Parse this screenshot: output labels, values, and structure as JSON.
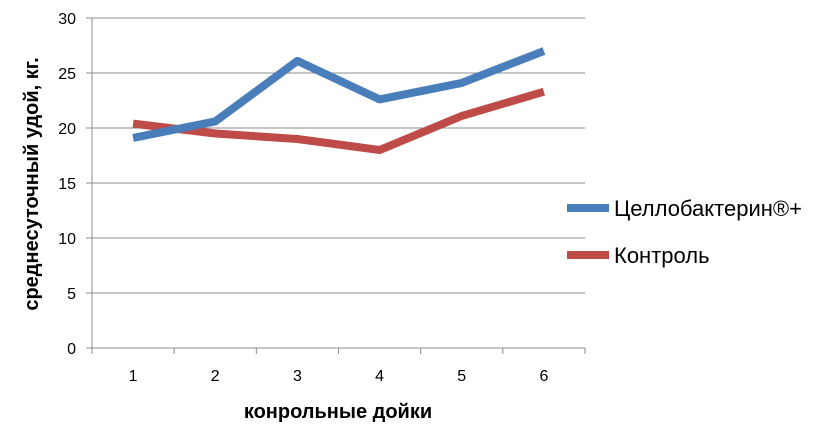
{
  "chart_data": {
    "type": "line",
    "title": "",
    "xlabel": "конрольные дойки",
    "ylabel": "среднесуточный удой, кг.",
    "categories": [
      "1",
      "2",
      "3",
      "4",
      "5",
      "6"
    ],
    "ylim": [
      0,
      30
    ],
    "yticks": [
      "0",
      "5",
      "10",
      "15",
      "20",
      "25",
      "30"
    ],
    "grid": true,
    "legend_position": "right",
    "series": [
      {
        "name": "Целлобактерин®+",
        "color": "#4a7ebb",
        "values": [
          19.1,
          20.6,
          26.1,
          22.6,
          24.1,
          27.0
        ]
      },
      {
        "name": "Контроль",
        "color": "#be4b48",
        "values": [
          20.4,
          19.5,
          19.0,
          18.0,
          21.1,
          23.3
        ]
      }
    ]
  }
}
